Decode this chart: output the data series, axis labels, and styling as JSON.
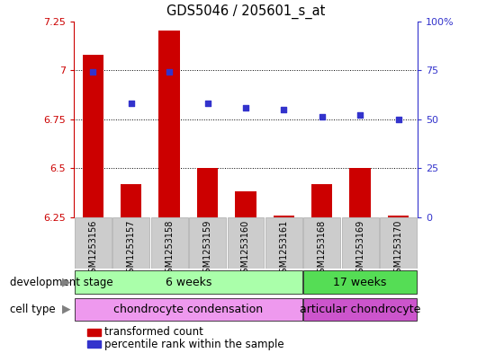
{
  "title": "GDS5046 / 205601_s_at",
  "samples": [
    "GSM1253156",
    "GSM1253157",
    "GSM1253158",
    "GSM1253159",
    "GSM1253160",
    "GSM1253161",
    "GSM1253168",
    "GSM1253169",
    "GSM1253170"
  ],
  "transformed_count": [
    7.08,
    6.42,
    7.2,
    6.5,
    6.38,
    6.26,
    6.42,
    6.5,
    6.26
  ],
  "percentile_rank": [
    74,
    58,
    74,
    58,
    56,
    55,
    51,
    52,
    50
  ],
  "ylim_left": [
    6.25,
    7.25
  ],
  "ylim_right": [
    0,
    100
  ],
  "yticks_left": [
    6.25,
    6.5,
    6.75,
    7.0,
    7.25
  ],
  "yticks_right": [
    0,
    25,
    50,
    75,
    100
  ],
  "ytick_labels_left": [
    "6.25",
    "6.5",
    "6.75",
    "7",
    "7.25"
  ],
  "ytick_labels_right": [
    "0",
    "25",
    "50",
    "75",
    "100%"
  ],
  "hlines": [
    7.0,
    6.75,
    6.5
  ],
  "bar_color": "#cc0000",
  "dot_color": "#3333cc",
  "bar_bottom": 6.25,
  "groups_dev": [
    {
      "label": "6 weeks",
      "start": 0,
      "end": 5,
      "color": "#aaffaa"
    },
    {
      "label": "17 weeks",
      "start": 6,
      "end": 8,
      "color": "#55dd55"
    }
  ],
  "groups_cell": [
    {
      "label": "chondrocyte condensation",
      "start": 0,
      "end": 5,
      "color": "#ee99ee"
    },
    {
      "label": "articular chondrocyte",
      "start": 6,
      "end": 8,
      "color": "#cc55cc"
    }
  ],
  "legend_items": [
    {
      "color": "#cc0000",
      "label": "transformed count"
    },
    {
      "color": "#3333cc",
      "label": "percentile rank within the sample"
    }
  ],
  "bg": "#ffffff",
  "left_color": "#cc0000",
  "right_color": "#3333cc",
  "row_label_dev": "development stage",
  "row_label_cell": "cell type",
  "bar_width": 0.55,
  "sample_box_color": "#cccccc",
  "sample_box_edge": "#aaaaaa"
}
